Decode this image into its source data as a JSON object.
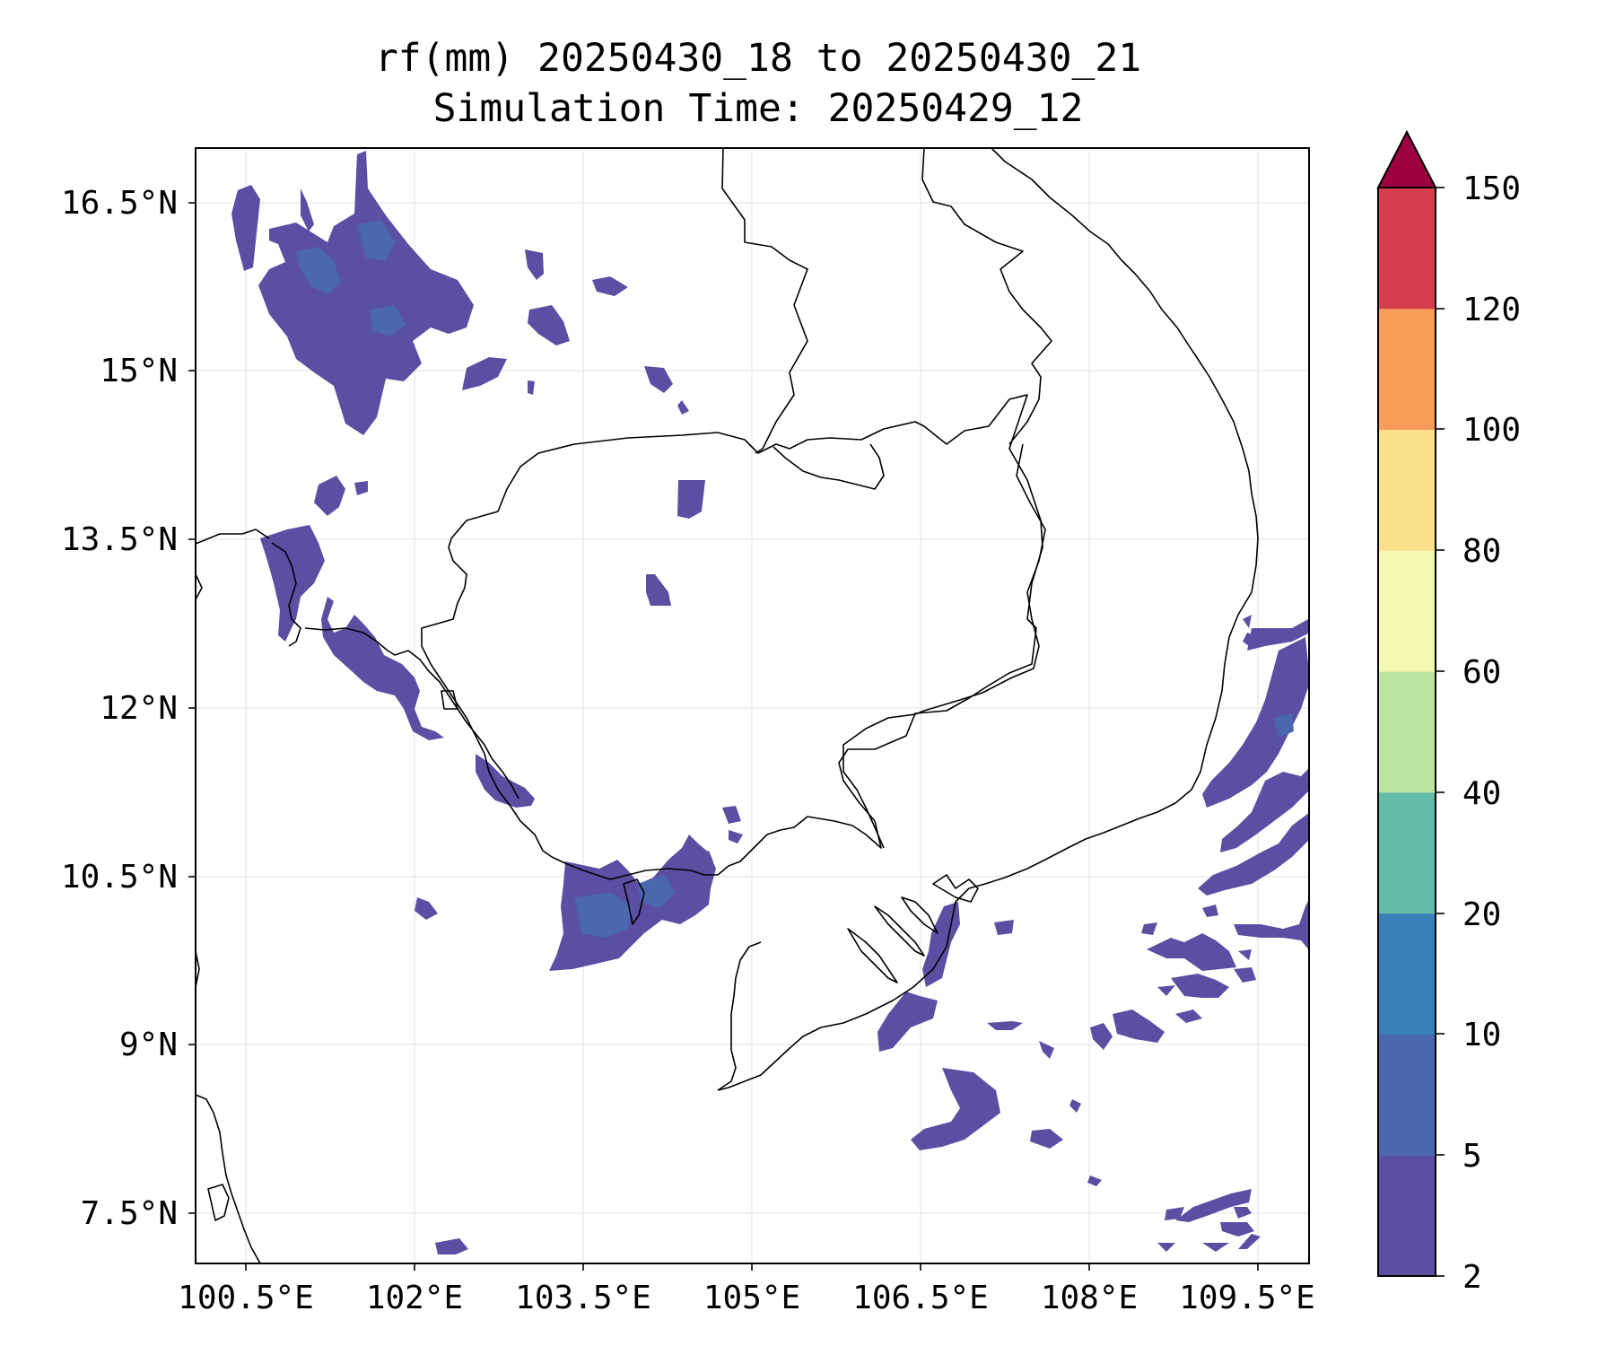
{
  "title_line1": "rf(mm) 20250430_18 to 20250430_21",
  "title_line2": "Simulation Time: 20250429_12",
  "map": {
    "lon_range": [
      100.5,
      109.5
    ],
    "lat_range": [
      7.0,
      17.0
    ],
    "lon_ticks": [
      "100.5°E",
      "102°E",
      "103.5°E",
      "105°E",
      "106.5°E",
      "108°E",
      "109.5°E"
    ],
    "lat_ticks": [
      "16.5°N",
      "15°N",
      "13.5°N",
      "12°N",
      "10.5°N",
      "9°N",
      "7.5°N"
    ],
    "gridlines": true,
    "coastlines": true,
    "country_borders": true
  },
  "colorbar": {
    "levels": [
      "2",
      "5",
      "10",
      "20",
      "40",
      "60",
      "80",
      "100",
      "120",
      "150"
    ],
    "colors": [
      "#5a4fa2",
      "#4a67af",
      "#3a7fb8",
      "#63bca6",
      "#bde3a0",
      "#f2f9b0",
      "#fcdf8a",
      "#f89c5a",
      "#d53e4f"
    ],
    "extend_color": "#9e0142",
    "extend": "max"
  },
  "rain_color_main": "#5a4fa2",
  "rain_color_heavy": "#4a67af"
}
